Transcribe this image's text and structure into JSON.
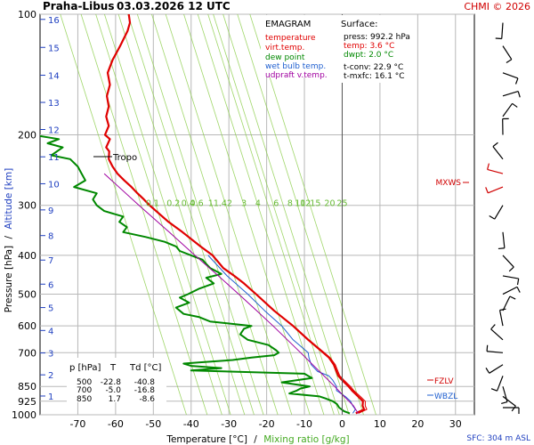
{
  "header": {
    "station": "Praha-Libus",
    "datetime": "03.03.2026 12 UTC",
    "credit": "CHMI © 2026"
  },
  "legend": {
    "title": "EMAGRAM",
    "items": [
      {
        "label": "temperature",
        "color": "#e00000"
      },
      {
        "label": "virt.temp.",
        "color": "#e00000"
      },
      {
        "label": "dew point",
        "color": "#008800"
      },
      {
        "label": "wet bulb temp.",
        "color": "#2060d0"
      },
      {
        "label": "udpraft v.temp.",
        "color": "#a000a0"
      }
    ]
  },
  "surface": {
    "title": "Surface:",
    "press": "press: 992.2 hPa",
    "temp": "temp: 3.6 °C",
    "dwpt": "dwpt: 2.0 °C",
    "tconv": "t-conv: 22.9 °C",
    "tmxfc": "t-mxfc: 16.1 °C"
  },
  "table": {
    "headers": [
      "p [hPa]",
      "T",
      "Td [°C]"
    ],
    "rows": [
      [
        "500",
        "-22.8",
        "-40.8"
      ],
      [
        "700",
        "-5.0",
        "-16.8"
      ],
      [
        "850",
        "1.7",
        "-8.6"
      ]
    ]
  },
  "annotations": {
    "tropo": "Tropo",
    "mxws": "MXWS",
    "fzlv": "FZLV",
    "wbzl": "WBZL"
  },
  "footer": {
    "sfc": "SFC: 304 m ASL"
  },
  "axes": {
    "xlabel_temp": "Temperature [°C]",
    "xlabel_sep": "/",
    "xlabel_mix": "Mixing ratio [g/kg]",
    "ylabel_p": "Pressure [hPa]",
    "ylabel_sep": "/",
    "ylabel_alt": "Altitude [km]"
  },
  "colors": {
    "temperature": "#e00000",
    "dewpoint": "#008800",
    "wetbulb": "#2060d0",
    "parcel": "#a000a0",
    "mixing": "#88cc44",
    "grid": "#b8b8b8",
    "altitude": "#2040c0"
  },
  "chart_data": {
    "type": "line",
    "title": "EMAGRAM",
    "xlabel": "Temperature [°C]",
    "ylabel": "Pressure [hPa]",
    "xlim": [
      -80,
      35
    ],
    "ylim": [
      1000,
      100
    ],
    "yscale": "log",
    "x_ticks": [
      -70,
      -60,
      -50,
      -40,
      -30,
      -20,
      -10,
      0,
      10,
      20,
      30
    ],
    "y_ticks": [
      100,
      200,
      300,
      400,
      500,
      600,
      700,
      850,
      925,
      1000
    ],
    "altitude_ticks_km": [
      "1",
      "2",
      "3",
      "4",
      "5",
      "6",
      "7",
      "8",
      "9",
      "10",
      "11",
      "12",
      "13",
      "14",
      "15",
      "16"
    ],
    "altitude_tick_pressure": [
      898,
      795,
      701,
      616,
      540,
      472,
      411,
      357,
      308,
      265,
      227,
      194,
      166,
      142,
      121,
      103
    ],
    "mixing_ratio_labels": [
      "0.1",
      "0.2",
      "0.4",
      "0.6",
      "1",
      "1.4",
      "2",
      "3",
      "4",
      "6",
      "8",
      "10",
      "12",
      "15",
      "20",
      "25"
    ],
    "mixing_ratio_label_temp": [
      -50.2,
      -44.7,
      -40.8,
      -38.5,
      -34.8,
      -32.3,
      -29.8,
      -26,
      -22.3,
      -17.5,
      -13.8,
      -11.1,
      -9.7,
      -7.1,
      -3.3,
      0
    ],
    "legend": "top-center",
    "grid": true,
    "series": [
      {
        "name": "temperature",
        "p": [
          992,
          970,
          950,
          925,
          900,
          870,
          850,
          820,
          800,
          780,
          750,
          720,
          700,
          650,
          600,
          550,
          500,
          470,
          450,
          430,
          400,
          380,
          350,
          330,
          300,
          290,
          280,
          270,
          260,
          250,
          240,
          230,
          220,
          215,
          205,
          200,
          190,
          180,
          170,
          160,
          150,
          140,
          130,
          120,
          110,
          105,
          100
        ],
        "values": [
          3.6,
          5.8,
          5.4,
          5.5,
          4.2,
          2.6,
          1.7,
          0,
          -1,
          -1.5,
          -2.2,
          -3.5,
          -5,
          -9,
          -13,
          -18,
          -22.8,
          -26,
          -28.6,
          -31.5,
          -34.3,
          -37.5,
          -42.3,
          -46,
          -51,
          -52.5,
          -54.2,
          -55.8,
          -57.7,
          -59.5,
          -60.8,
          -61.8,
          -61.7,
          -62.5,
          -61.5,
          -62.8,
          -61.8,
          -62.5,
          -61.8,
          -62.3,
          -61.5,
          -62.1,
          -60.8,
          -58.8,
          -56.8,
          -56.2,
          -56.5
        ]
      },
      {
        "name": "virt.temp.",
        "p": [
          992,
          970,
          950,
          925,
          900,
          870,
          850,
          820,
          800,
          780,
          750,
          720,
          700,
          650,
          600,
          550,
          500,
          470,
          450,
          430,
          400,
          380,
          350,
          330,
          300,
          290,
          280,
          270,
          260,
          250,
          240,
          230,
          220,
          215,
          205,
          200,
          190,
          180,
          170,
          160,
          150,
          140,
          130,
          120,
          110,
          105,
          100
        ],
        "values": [
          4.3,
          6.5,
          6.1,
          6.1,
          4.8,
          3.1,
          2.2,
          0.5,
          -0.6,
          -1.1,
          -1.8,
          -3.2,
          -4.7,
          -8.8,
          -12.9,
          -17.9,
          -22.7,
          -26,
          -28.6,
          -31.5,
          -34.3,
          -37.5,
          -42.3,
          -46,
          -51,
          -52.5,
          -54.2,
          -55.8,
          -57.7,
          -59.5,
          -60.8,
          -61.8,
          -61.7,
          -62.5,
          -61.5,
          -62.8,
          -61.8,
          -62.5,
          -61.8,
          -62.3,
          -61.5,
          -62.1,
          -60.8,
          -58.8,
          -56.8,
          -56.2,
          -56.5
        ]
      },
      {
        "name": "dew point",
        "p": [
          992,
          980,
          960,
          940,
          925,
          910,
          900,
          885,
          870,
          860,
          850,
          830,
          810,
          800,
          790,
          775,
          765,
          755,
          745,
          740,
          730,
          720,
          710,
          700,
          690,
          670,
          650,
          630,
          610,
          600,
          585,
          570,
          560,
          540,
          525,
          510,
          500,
          485,
          470,
          455,
          445,
          430,
          420,
          410,
          400,
          390,
          380,
          370,
          360,
          350,
          340,
          330,
          320,
          310,
          300,
          290,
          280,
          270,
          260,
          250,
          240,
          230,
          225,
          215,
          210,
          205,
          200,
          190
        ],
        "values": [
          2,
          0.5,
          -0.8,
          -1.4,
          -2.5,
          -4.5,
          -6,
          -14,
          -12,
          -11,
          -8.6,
          -16,
          -8,
          -9,
          -10,
          -40,
          -32,
          -40,
          -42,
          -38,
          -29,
          -24,
          -18,
          -16.8,
          -17.5,
          -19.5,
          -25,
          -27,
          -26,
          -24,
          -35,
          -38,
          -42,
          -44,
          -40.5,
          -43,
          -40.8,
          -38,
          -34,
          -36,
          -32,
          -35,
          -36,
          -37,
          -40,
          -43,
          -44,
          -47,
          -52,
          -58,
          -57,
          -59,
          -58,
          -63,
          -65,
          -66,
          -65,
          -71,
          -68,
          -69,
          -70,
          -72,
          -77,
          -74,
          -78,
          -75,
          -82,
          -85
        ]
      },
      {
        "name": "wet bulb temp.",
        "p": [
          992,
          970,
          950,
          925,
          900,
          870,
          850,
          820,
          800,
          780,
          750,
          720,
          700,
          650,
          600,
          550,
          500,
          450,
          400
        ],
        "values": [
          2.8,
          3.5,
          2.8,
          2.2,
          0.8,
          -1.5,
          -1.5,
          -2.5,
          -3.5,
          -6.5,
          -8.2,
          -8.8,
          -9,
          -13,
          -16,
          -20.5,
          -25,
          -30.5,
          -35.5
        ]
      },
      {
        "name": "udpraft v.temp.",
        "p": [
          992,
          950,
          925,
          900,
          850,
          800,
          750,
          700,
          650,
          600,
          550,
          500,
          450,
          400,
          350,
          300,
          250
        ],
        "values": [
          4.2,
          3,
          1.8,
          0.5,
          -2,
          -4.8,
          -7.8,
          -11,
          -14.5,
          -18.3,
          -22.6,
          -27.4,
          -32.8,
          -39,
          -45.8,
          -53.8,
          -63
        ]
      }
    ]
  }
}
